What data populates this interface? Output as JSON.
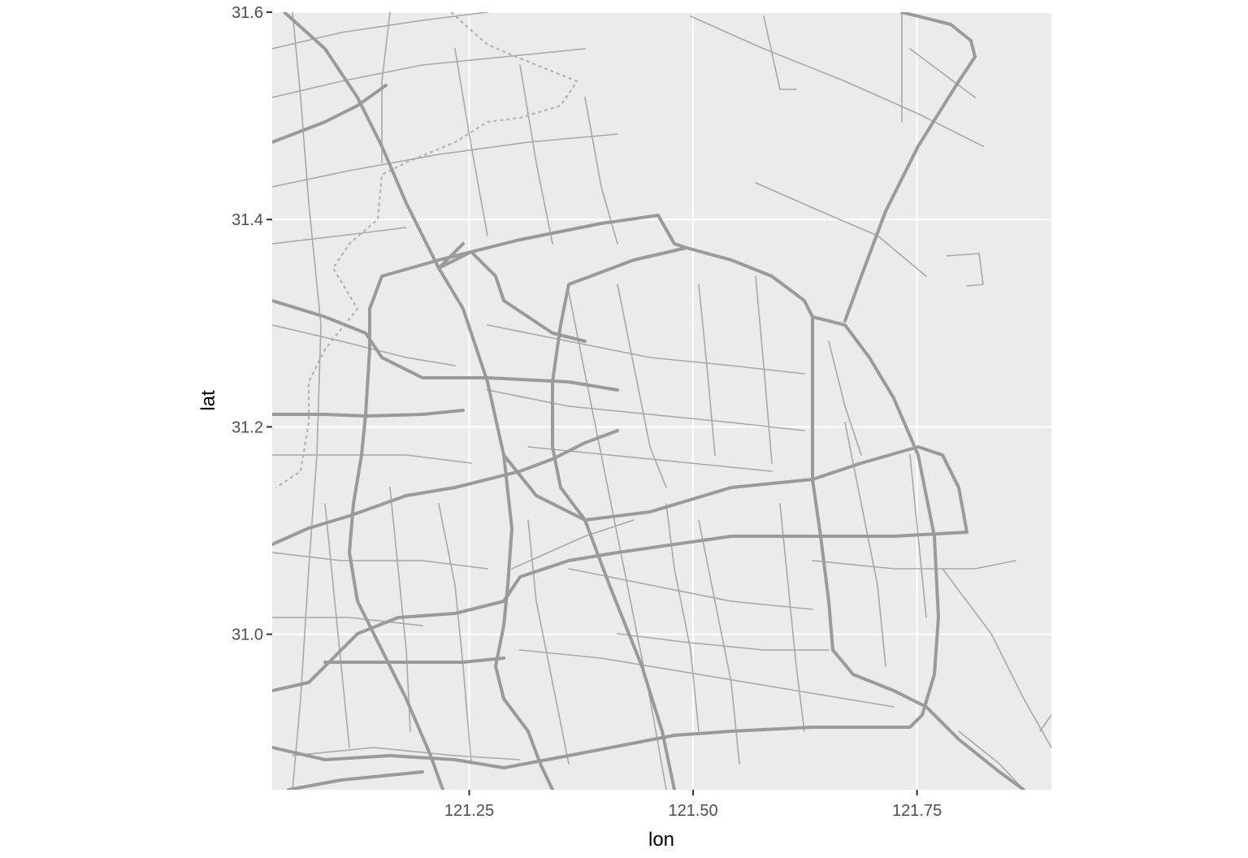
{
  "chart_data": {
    "type": "map",
    "basemap": "road network (Shanghai)",
    "xlabel": "lon",
    "ylabel": "lat",
    "xlim": [
      121.03,
      121.9
    ],
    "ylim": [
      30.85,
      31.6
    ],
    "x_ticks": [
      {
        "value": 121.25,
        "label": "121.25"
      },
      {
        "value": 121.5,
        "label": "121.50"
      },
      {
        "value": 121.75,
        "label": "121.75"
      }
    ],
    "y_ticks": [
      {
        "value": 31.0,
        "label": "31.0"
      },
      {
        "value": 31.2,
        "label": "31.2"
      },
      {
        "value": 31.4,
        "label": "31.4"
      },
      {
        "value": 31.6,
        "label": "31.6"
      }
    ],
    "grid": true,
    "colors": {
      "panel_background": "#ebebeb",
      "grid": "#ffffff",
      "road": "#9a9a9a",
      "boundary": "#b2b2b2"
    }
  }
}
